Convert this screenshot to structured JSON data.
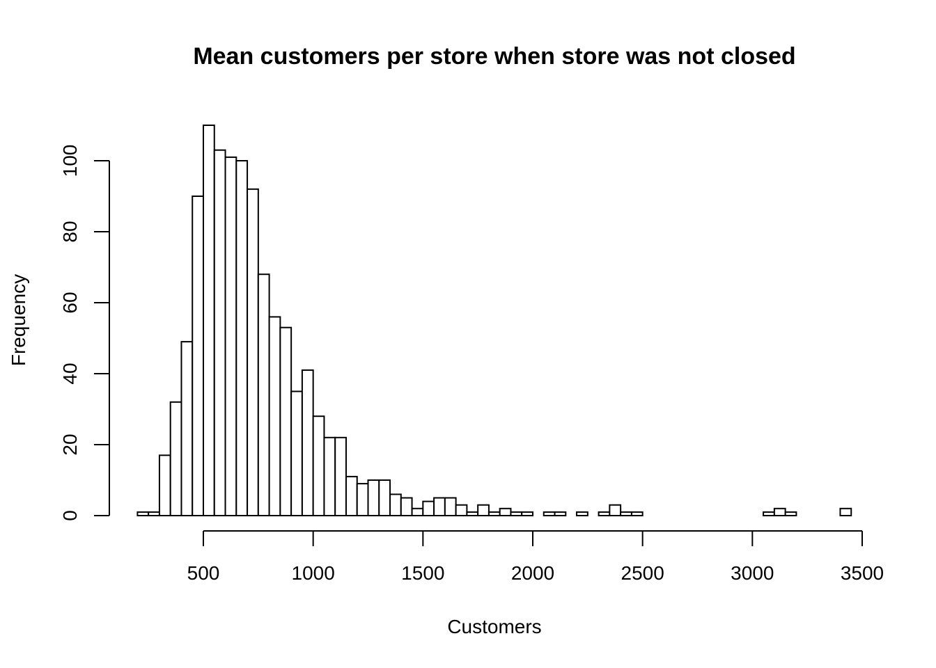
{
  "chart_data": {
    "type": "bar",
    "title": "Mean customers per store when store was not closed",
    "xlabel": "Customers",
    "ylabel": "Frequency",
    "bin_width": 50,
    "bins_start": [
      200,
      250,
      300,
      350,
      400,
      450,
      500,
      550,
      600,
      650,
      700,
      750,
      800,
      850,
      900,
      950,
      1000,
      1050,
      1100,
      1150,
      1200,
      1250,
      1300,
      1350,
      1400,
      1450,
      1500,
      1550,
      1600,
      1650,
      1700,
      1750,
      1800,
      1850,
      1900,
      1950,
      2000,
      2050,
      2100,
      2150,
      2200,
      2250,
      2300,
      2350,
      2400,
      2450,
      2500,
      2550,
      2600,
      2650,
      2700,
      2750,
      2800,
      2850,
      2900,
      2950,
      3000,
      3050,
      3100,
      3150,
      3200,
      3250,
      3300,
      3350,
      3400
    ],
    "values": [
      1,
      1,
      17,
      32,
      49,
      90,
      110,
      103,
      101,
      100,
      92,
      68,
      56,
      53,
      35,
      41,
      28,
      22,
      22,
      11,
      9,
      10,
      10,
      6,
      5,
      2,
      4,
      5,
      5,
      3,
      1,
      3,
      1,
      2,
      1,
      1,
      0,
      1,
      1,
      0,
      1,
      0,
      1,
      3,
      1,
      1,
      0,
      0,
      0,
      0,
      0,
      0,
      0,
      0,
      0,
      0,
      0,
      1,
      2,
      1,
      0,
      0,
      0,
      0,
      2
    ],
    "xticks": [
      500,
      1000,
      1500,
      2000,
      2500,
      3000,
      3500
    ],
    "yticks": [
      0,
      20,
      40,
      60,
      80,
      100
    ],
    "xlim": [
      200,
      3500
    ],
    "ylim": [
      0,
      110
    ],
    "bar_fill": "#ffffff",
    "bar_stroke": "#000000"
  }
}
